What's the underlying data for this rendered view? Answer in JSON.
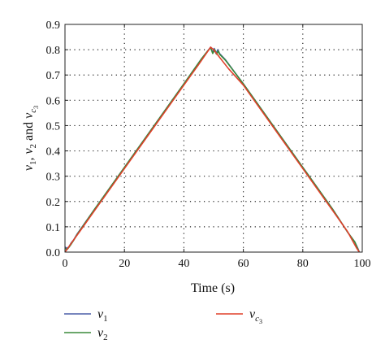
{
  "chart_data": {
    "type": "line",
    "xlabel": "Time (s)",
    "ylabel": "v1, v2 and vc3",
    "ylabel_parts": {
      "v1": "v",
      "s1": "1",
      "sep1": ", ",
      "v2": "v",
      "s2": "2",
      "and": " and ",
      "v3": "v",
      "s3": "c",
      "s3b": "3"
    },
    "xlim": [
      0,
      100
    ],
    "ylim": [
      0,
      0.9
    ],
    "xticks": [
      "0",
      "20",
      "40",
      "60",
      "80",
      "100"
    ],
    "yticks": [
      "0.0",
      "0.1",
      "0.2",
      "0.3",
      "0.4",
      "0.5",
      "0.6",
      "0.7",
      "0.8",
      "0.9"
    ],
    "grid": true,
    "legend_position": "bottom",
    "series": [
      {
        "name": "v1",
        "name_main": "v",
        "name_sub": "1",
        "color": "#4b5fa8",
        "x": [
          0,
          0.7,
          1.4,
          2.0,
          3.0,
          4.0,
          10,
          20,
          30,
          40,
          46,
          48,
          49,
          49.6,
          50.2,
          50.8,
          51.4,
          52,
          54,
          60,
          70,
          80,
          90,
          95,
          97.5,
          98.5,
          99
        ],
        "y": [
          0.02,
          0.015,
          0.022,
          0.035,
          0.05,
          0.07,
          0.17,
          0.335,
          0.5,
          0.665,
          0.765,
          0.795,
          0.81,
          0.79,
          0.805,
          0.785,
          0.8,
          0.785,
          0.76,
          0.665,
          0.5,
          0.335,
          0.17,
          0.08,
          0.04,
          0.015,
          0.0
        ]
      },
      {
        "name": "v2",
        "name_main": "v",
        "name_sub": "2",
        "color": "#3a8a3a",
        "x": [
          0,
          0.7,
          1.4,
          2.0,
          3.0,
          4.0,
          10,
          20,
          30,
          40,
          46,
          48,
          49,
          49.7,
          50.4,
          51.0,
          51.6,
          52,
          54,
          60,
          70,
          80,
          90,
          95,
          97.5,
          98.5,
          99
        ],
        "y": [
          0.015,
          0.01,
          0.02,
          0.03,
          0.048,
          0.068,
          0.17,
          0.335,
          0.5,
          0.665,
          0.765,
          0.795,
          0.808,
          0.785,
          0.8,
          0.782,
          0.795,
          0.782,
          0.758,
          0.665,
          0.5,
          0.335,
          0.17,
          0.08,
          0.04,
          0.012,
          0.0
        ]
      },
      {
        "name": "vc3",
        "name_main": "v",
        "name_sub": "c",
        "name_sub2": "3",
        "color": "#e0402a",
        "x": [
          0,
          1,
          2,
          5,
          10,
          20,
          30,
          40,
          45,
          49,
          50,
          55,
          60,
          70,
          80,
          90,
          95,
          98,
          99
        ],
        "y": [
          0.0,
          0.016,
          0.033,
          0.082,
          0.165,
          0.33,
          0.495,
          0.66,
          0.742,
          0.81,
          0.8,
          0.725,
          0.66,
          0.495,
          0.33,
          0.165,
          0.082,
          0.018,
          0.0
        ]
      }
    ]
  }
}
